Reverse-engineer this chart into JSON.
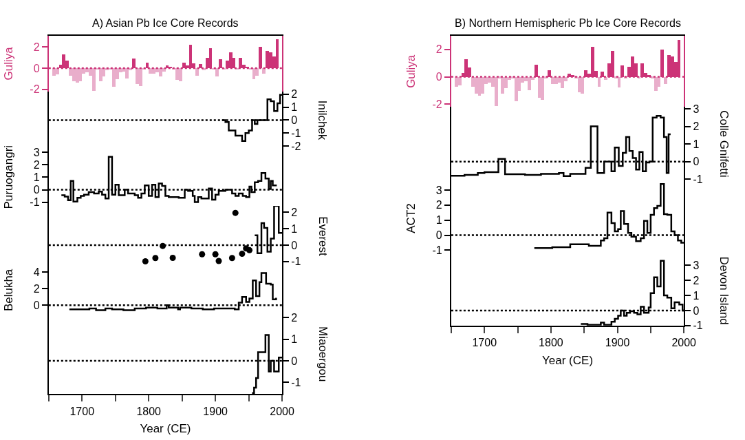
{
  "chart_data": [
    {
      "type": "bar",
      "title": "A) Asian Pb Ice Core Records",
      "ylabel": "Guliya",
      "xlim": [
        1650,
        2000
      ],
      "ylim": [
        -2.2,
        3.05
      ],
      "yticks": [
        -2,
        0,
        2
      ],
      "tick_labels": "y",
      "ref_lines": [
        {
          "axis": "y",
          "value": 0,
          "color": "#cc3377",
          "line_style": "dotted"
        }
      ],
      "series": [
        {
          "color": "#cc3377",
          "x": [
            1657.5,
            1662.5,
            1667.5,
            1672.5,
            1677.5,
            1682.5,
            1687.5,
            1692.5,
            1697.5,
            1702.5,
            1707.5,
            1712.5,
            1717.5,
            1722.5,
            1727.5,
            1732.5,
            1737.5,
            1742.5,
            1747.5,
            1752.5,
            1757.5,
            1762.5,
            1767.5,
            1772.5,
            1777.5,
            1782.5,
            1787.5,
            1792.5,
            1797.5,
            1802.5,
            1807.5,
            1812.5,
            1817.5,
            1822.5,
            1827.5,
            1832.5,
            1837.5,
            1842.5,
            1847.5,
            1852.5,
            1857.5,
            1862.5,
            1867.5,
            1872.5,
            1877.5,
            1882.5,
            1887.5,
            1892.5,
            1897.5,
            1902.5,
            1907.5,
            1912.5,
            1917.5,
            1922.5,
            1927.5,
            1932.5,
            1937.5,
            1942.5,
            1947.5,
            1952.5,
            1957.5,
            1962.5,
            1967.5,
            1972.5,
            1977.5,
            1982.5,
            1987.5,
            1992.5
          ],
          "values": [
            -0.7,
            -0.6,
            0.3,
            1.3,
            0.7,
            -0.7,
            -1.2,
            -1.35,
            -1.2,
            -0.5,
            -0.4,
            -0.7,
            -2.1,
            -0.1,
            -1.2,
            -0.8,
            -0.2,
            -0.1,
            -1.75,
            -1.0,
            -0.4,
            -0.3,
            -0.95,
            -0.2,
            0.9,
            -1.5,
            -1.65,
            -0.1,
            0.5,
            -0.5,
            -0.5,
            -0.4,
            -0.8,
            -0.3,
            0.25,
            0.15,
            -0.1,
            -1.1,
            -1.2,
            0.5,
            0.25,
            2.2,
            0.45,
            -0.7,
            0.4,
            -0.2,
            1.0,
            1.9,
            -0.1,
            -0.75,
            0.85,
            -0.1,
            0.75,
            1.5,
            1.0,
            -0.1,
            1.0,
            0.3,
            0.15,
            -0.1,
            -1.0,
            -0.7,
            2.0,
            -0.5,
            1.6,
            1.5,
            1.1,
            2.7
          ],
          "colors": [
            "#e9aecb",
            "#e9aecb",
            "#cc3377",
            "#cc3377",
            "#cc3377",
            "#e9aecb",
            "#e9aecb",
            "#e9aecb",
            "#e9aecb",
            "#e9aecb",
            "#e9aecb",
            "#e9aecb",
            "#e9aecb",
            "#e9aecb",
            "#e9aecb",
            "#e9aecb",
            "#e9aecb",
            "#e9aecb",
            "#e9aecb",
            "#e9aecb",
            "#e9aecb",
            "#e9aecb",
            "#e9aecb",
            "#e9aecb",
            "#cc3377",
            "#e9aecb",
            "#e9aecb",
            "#e9aecb",
            "#cc3377",
            "#e9aecb",
            "#e9aecb",
            "#e9aecb",
            "#e9aecb",
            "#e9aecb",
            "#cc3377",
            "#cc3377",
            "#e9aecb",
            "#e9aecb",
            "#e9aecb",
            "#cc3377",
            "#cc3377",
            "#cc3377",
            "#cc3377",
            "#e9aecb",
            "#cc3377",
            "#e9aecb",
            "#cc3377",
            "#cc3377",
            "#e9aecb",
            "#e9aecb",
            "#cc3377",
            "#e9aecb",
            "#cc3377",
            "#cc3377",
            "#cc3377",
            "#e9aecb",
            "#cc3377",
            "#cc3377",
            "#cc3377",
            "#e9aecb",
            "#e9aecb",
            "#e9aecb",
            "#cc3377",
            "#e9aecb",
            "#cc3377",
            "#cc3377",
            "#cc3377",
            "#cc3377"
          ]
        }
      ]
    },
    {
      "type": "step",
      "y2label": "Inilchek",
      "xlim": [
        1650,
        2000
      ],
      "y2lim": [
        -2.2,
        2.2
      ],
      "y2ticks": [
        -2,
        -1,
        0,
        1,
        2
      ],
      "tick_labels": "y",
      "ref_lines": [
        {
          "axis": "y2",
          "value": 0,
          "color": "#000000",
          "line_style": "dotted"
        }
      ],
      "series": [
        {
          "color": "#000000",
          "axis": "y2",
          "x": [
            1910,
            1915,
            1920,
            1930,
            1940,
            1945,
            1950,
            1955,
            1959,
            1963,
            1978,
            1983,
            1988,
            1993,
            1997,
            2000
          ],
          "values": [
            0,
            -0.15,
            -0.8,
            -1.2,
            -1.6,
            -1.0,
            -0.8,
            0,
            -0.3,
            0,
            1.6,
            1.45,
            0.7,
            1.3,
            1.95,
            1.95
          ]
        }
      ]
    },
    {
      "type": "step",
      "ylabel": "Puruogangri",
      "xlim": [
        1650,
        2000
      ],
      "ylim": [
        -1.3,
        3.3
      ],
      "yticks": [
        -1,
        0,
        1,
        2,
        3
      ],
      "tick_labels": "y",
      "ref_lines": [
        {
          "axis": "y",
          "value": 0,
          "color": "#000000",
          "line_style": "dotted"
        }
      ],
      "series": [
        {
          "color": "#000000",
          "x": [
            1669,
            1674,
            1679,
            1683,
            1687,
            1693,
            1698,
            1703,
            1710,
            1718,
            1725,
            1730,
            1735,
            1740,
            1745,
            1750,
            1755,
            1764,
            1769,
            1779,
            1784,
            1789,
            1794,
            1800,
            1805,
            1810,
            1815,
            1820,
            1825,
            1830,
            1845,
            1854,
            1859,
            1866,
            1869,
            1874,
            1879,
            1890,
            1895,
            1900,
            1905,
            1915,
            1925,
            1930,
            1935,
            1941,
            1946,
            1951,
            1954,
            1959,
            1964,
            1969,
            1975,
            1980,
            1983,
            1986,
            1992
          ],
          "values": [
            -0.45,
            -0.55,
            -0.85,
            0.7,
            -0.95,
            -0.65,
            -0.5,
            -0.4,
            -0.2,
            -0.3,
            -0.15,
            -0.4,
            -0.7,
            2.65,
            -0.4,
            0.4,
            -0.45,
            0,
            -0.3,
            -0.45,
            -0.65,
            -0.3,
            0.35,
            -0.5,
            0.4,
            -0.6,
            0.5,
            0.3,
            -0.5,
            -0.6,
            -0.65,
            0,
            -0.1,
            -0.5,
            -1.0,
            -0.6,
            -0.7,
            0.1,
            -0.8,
            -0.4,
            -0.1,
            0,
            -0.3,
            -0.5,
            -0.3,
            -0.5,
            -0.6,
            0.25,
            -0.2,
            0.6,
            0.7,
            1.35,
            0.9,
            0.05,
            0.7,
            0.35,
            0.35
          ]
        }
      ]
    },
    {
      "type": "step",
      "y2label": "Everest",
      "xlim": [
        1650,
        2000
      ],
      "y2lim": [
        -1.3,
        2.4
      ],
      "y2ticks": [
        -1,
        0,
        1,
        2
      ],
      "tick_labels": "y",
      "ref_lines": [
        {
          "axis": "y2",
          "value": 0,
          "color": "#000000",
          "line_style": "dotted"
        }
      ],
      "series": [
        {
          "color": "#000000",
          "axis": "y2",
          "x": [
            1959,
            1963,
            1969,
            1973,
            1978,
            1983,
            1988,
            1995,
            2000
          ],
          "values": [
            0.6,
            -0.5,
            1.35,
            1.05,
            -0.4,
            0.4,
            2.4,
            0.75,
            0.75
          ]
        },
        {
          "type": "scatter",
          "marker": "circle",
          "color": "#000000",
          "axis": "y2",
          "x": [
            1795,
            1810,
            1821,
            1836,
            1880,
            1900,
            1905,
            1925,
            1930,
            1940,
            1946,
            1951
          ],
          "values": [
            -0.99,
            -0.79,
            -0.05,
            -0.78,
            -0.56,
            -0.56,
            -0.97,
            -0.79,
            1.97,
            -0.53,
            -0.2,
            -0.31
          ]
        }
      ]
    },
    {
      "type": "step",
      "ylabel": "Belukha",
      "xlim": [
        1650,
        2000
      ],
      "ylim": [
        -1,
        4.7
      ],
      "yticks": [
        0,
        2,
        4
      ],
      "tick_labels": "y",
      "ref_lines": [
        {
          "axis": "y",
          "value": 0,
          "color": "#000000",
          "line_style": "dotted"
        }
      ],
      "series": [
        {
          "color": "#000000",
          "x": [
            1681,
            1711,
            1721,
            1735,
            1745,
            1762,
            1779,
            1796,
            1813,
            1827,
            1830,
            1844,
            1847,
            1864,
            1881,
            1898,
            1915,
            1929,
            1935,
            1940,
            1946,
            1951,
            1956,
            1961,
            1966,
            1969,
            1976,
            1983,
            1986,
            1991
          ],
          "values": [
            -0.5,
            -0.4,
            -0.6,
            -0.4,
            -0.5,
            -0.6,
            -0.4,
            -0.3,
            -0.4,
            0,
            -0.3,
            -0.5,
            -0.3,
            -0.4,
            -0.5,
            -0.4,
            -0.4,
            -0.5,
            0.3,
            1.0,
            0.4,
            0.8,
            3.0,
            1.1,
            2.8,
            3.9,
            2.6,
            2.5,
            0.7,
            0.9
          ]
        }
      ]
    },
    {
      "type": "step",
      "y2label": "Miaoergou",
      "xlabel": "Year (CE)",
      "xlim": [
        1650,
        2000
      ],
      "xticks": [
        {
          "value": 1650,
          "label": null
        },
        1700,
        {
          "value": 1750,
          "label": null
        },
        1800,
        {
          "value": 1850,
          "label": null
        },
        1900,
        {
          "value": 1950,
          "label": null
        },
        2000
      ],
      "y2lim": [
        -1.55,
        2.2
      ],
      "y2ticks": [
        -1,
        0,
        1,
        2
      ],
      "ref_lines": [
        {
          "axis": "y2",
          "value": 0,
          "color": "#000000",
          "line_style": "dotted"
        }
      ],
      "series": [
        {
          "color": "#000000",
          "axis": "y2",
          "x": [
            1955,
            1958,
            1961,
            1964,
            1975,
            1980,
            1983,
            1988,
            1995,
            2000
          ],
          "values": [
            -1.5,
            -1.25,
            -0.8,
            0.4,
            1.2,
            -0.5,
            0,
            -0.5,
            0.15,
            0.15
          ]
        }
      ]
    },
    {
      "type": "bar",
      "title": "B) Northern Hemispheric Pb Ice Core Records",
      "ylabel": "Guliya",
      "xlim": [
        1650,
        2000
      ],
      "ylim": [
        -2.2,
        3.0
      ],
      "yticks": [
        -2,
        0,
        2
      ],
      "tick_labels": "y",
      "ref_lines": [
        {
          "axis": "y",
          "value": 0,
          "color": "#cc3377",
          "line_style": "dotted"
        }
      ],
      "series": [
        {
          "color": "#cc3377",
          "x": [
            1657.5,
            1662.5,
            1667.5,
            1672.5,
            1677.5,
            1682.5,
            1687.5,
            1692.5,
            1697.5,
            1702.5,
            1707.5,
            1712.5,
            1717.5,
            1722.5,
            1727.5,
            1732.5,
            1737.5,
            1742.5,
            1747.5,
            1752.5,
            1757.5,
            1762.5,
            1767.5,
            1772.5,
            1777.5,
            1782.5,
            1787.5,
            1792.5,
            1797.5,
            1802.5,
            1807.5,
            1812.5,
            1817.5,
            1822.5,
            1827.5,
            1832.5,
            1837.5,
            1842.5,
            1847.5,
            1852.5,
            1857.5,
            1862.5,
            1867.5,
            1872.5,
            1877.5,
            1882.5,
            1887.5,
            1892.5,
            1897.5,
            1902.5,
            1907.5,
            1912.5,
            1917.5,
            1922.5,
            1927.5,
            1932.5,
            1937.5,
            1942.5,
            1947.5,
            1952.5,
            1957.5,
            1962.5,
            1967.5,
            1972.5,
            1977.5,
            1982.5,
            1987.5,
            1992.5
          ],
          "values": [
            -0.7,
            -0.6,
            0.3,
            1.3,
            0.7,
            -0.7,
            -1.2,
            -1.35,
            -1.2,
            -0.5,
            -0.4,
            -0.7,
            -2.1,
            -0.1,
            -1.2,
            -0.8,
            -0.2,
            -0.1,
            -1.75,
            -1.0,
            -0.4,
            -0.3,
            -0.95,
            -0.2,
            0.9,
            -1.5,
            -1.65,
            -0.1,
            0.5,
            -0.5,
            -0.5,
            -0.4,
            -0.8,
            -0.3,
            0.25,
            0.15,
            -0.1,
            -1.1,
            -1.2,
            0.5,
            0.25,
            2.2,
            0.45,
            -0.7,
            0.4,
            -0.2,
            1.0,
            1.9,
            -0.1,
            -0.75,
            0.85,
            -0.1,
            0.75,
            1.5,
            1.0,
            -0.1,
            1.0,
            0.3,
            0.15,
            -0.1,
            -1.0,
            -0.7,
            2.0,
            -0.5,
            1.6,
            1.5,
            1.1,
            2.7
          ],
          "colors": [
            "#e9aecb",
            "#e9aecb",
            "#cc3377",
            "#cc3377",
            "#cc3377",
            "#e9aecb",
            "#e9aecb",
            "#e9aecb",
            "#e9aecb",
            "#e9aecb",
            "#e9aecb",
            "#e9aecb",
            "#e9aecb",
            "#e9aecb",
            "#e9aecb",
            "#e9aecb",
            "#e9aecb",
            "#e9aecb",
            "#e9aecb",
            "#e9aecb",
            "#e9aecb",
            "#e9aecb",
            "#e9aecb",
            "#e9aecb",
            "#cc3377",
            "#e9aecb",
            "#e9aecb",
            "#e9aecb",
            "#cc3377",
            "#e9aecb",
            "#e9aecb",
            "#e9aecb",
            "#e9aecb",
            "#e9aecb",
            "#cc3377",
            "#cc3377",
            "#e9aecb",
            "#e9aecb",
            "#e9aecb",
            "#cc3377",
            "#cc3377",
            "#cc3377",
            "#cc3377",
            "#e9aecb",
            "#cc3377",
            "#e9aecb",
            "#cc3377",
            "#cc3377",
            "#e9aecb",
            "#e9aecb",
            "#cc3377",
            "#e9aecb",
            "#cc3377",
            "#cc3377",
            "#cc3377",
            "#e9aecb",
            "#cc3377",
            "#cc3377",
            "#cc3377",
            "#e9aecb",
            "#e9aecb",
            "#e9aecb",
            "#cc3377",
            "#e9aecb",
            "#cc3377",
            "#cc3377",
            "#cc3377",
            "#cc3377"
          ]
        }
      ]
    },
    {
      "type": "step",
      "y2label": "Colle Gnifetti",
      "xlim": [
        1650,
        2000
      ],
      "y2lim": [
        -1.1,
        3.1
      ],
      "y2ticks": [
        -1,
        0,
        1,
        2,
        3
      ],
      "tick_labels": "y",
      "ref_lines": [
        {
          "axis": "y2",
          "value": 0,
          "color": "#000000",
          "line_style": "dotted"
        }
      ],
      "series": [
        {
          "color": "#000000",
          "axis": "y2",
          "x": [
            1650,
            1670,
            1690,
            1700,
            1721,
            1731,
            1761,
            1785,
            1812,
            1819,
            1829,
            1852,
            1860,
            1870,
            1880,
            1891,
            1896,
            1902,
            1908,
            1913,
            1918,
            1923,
            1928,
            1933,
            1938,
            1943,
            1948,
            1953,
            1959,
            1965,
            1970,
            1974,
            1977,
            1980
          ],
          "values": [
            -0.8,
            -0.75,
            -0.65,
            -0.6,
            0.15,
            -0.72,
            -0.75,
            -0.7,
            -0.65,
            -0.82,
            -0.7,
            -0.35,
            2.0,
            -0.65,
            0,
            -0.55,
            0.8,
            -0.25,
            0.5,
            1.4,
            0.6,
            0.2,
            -0.45,
            0.55,
            -0.55,
            -0.05,
            0,
            2.5,
            2.6,
            2.5,
            1.4,
            -0.65,
            1.55,
            1.55
          ]
        }
      ]
    },
    {
      "type": "step",
      "ylabel": "ACT2",
      "xlim": [
        1650,
        2000
      ],
      "ylim": [
        -1.4,
        3.6
      ],
      "yticks": [
        -1,
        0,
        1,
        2,
        3
      ],
      "tick_labels": "y",
      "ref_lines": [
        {
          "axis": "y",
          "value": 0,
          "color": "#000000",
          "line_style": "dotted"
        }
      ],
      "series": [
        {
          "color": "#000000",
          "x": [
            1775,
            1802,
            1829,
            1857,
            1875,
            1880,
            1885,
            1891,
            1896,
            1901,
            1905,
            1910,
            1916,
            1921,
            1928,
            1935,
            1940,
            1945,
            1950,
            1955,
            1960,
            1965,
            1970,
            1975,
            1981,
            1986,
            1991,
            1996,
            2000
          ],
          "values": [
            -0.85,
            -0.8,
            -0.6,
            -0.7,
            -0.35,
            -0.2,
            1.5,
            0.8,
            0.25,
            0.4,
            1.6,
            0.75,
            0.15,
            -0.1,
            -0.4,
            -0.2,
            0.95,
            0.15,
            1.35,
            1.8,
            1.95,
            3.4,
            1.4,
            1.35,
            0.25,
            0,
            -0.35,
            -0.5,
            -0.5
          ]
        }
      ]
    },
    {
      "type": "step",
      "y2label": "Devon Island",
      "xlabel": "Year (CE)",
      "xlim": [
        1650,
        2000
      ],
      "xticks": [
        {
          "value": 1650,
          "label": null
        },
        1700,
        {
          "value": 1750,
          "label": null
        },
        1800,
        {
          "value": 1850,
          "label": null
        },
        1900,
        {
          "value": 1950,
          "label": null
        },
        2000
      ],
      "y2lim": [
        -1,
        3.6
      ],
      "y2ticks": [
        -1,
        0,
        1,
        2,
        3
      ],
      "ref_lines": [
        {
          "axis": "y2",
          "value": 0,
          "color": "#000000",
          "line_style": "dotted"
        }
      ],
      "series": [
        {
          "color": "#000000",
          "axis": "y2",
          "x": [
            1845,
            1855,
            1875,
            1880,
            1891,
            1896,
            1901,
            1905,
            1910,
            1914,
            1919,
            1925,
            1930,
            1935,
            1940,
            1947,
            1950,
            1955,
            1960,
            1965,
            1970,
            1975,
            1981,
            1986,
            1993,
            1998,
            2000
          ],
          "values": [
            -0.9,
            -0.95,
            -0.8,
            -0.95,
            -0.75,
            -0.55,
            -0.35,
            0,
            -0.35,
            -0.15,
            -0.05,
            -0.15,
            -0.25,
            0.25,
            -0.15,
            0.2,
            1.15,
            2.2,
            1.6,
            3.3,
            1.0,
            0.85,
            0.15,
            0.55,
            0.4,
            0,
            0
          ]
        }
      ]
    }
  ]
}
